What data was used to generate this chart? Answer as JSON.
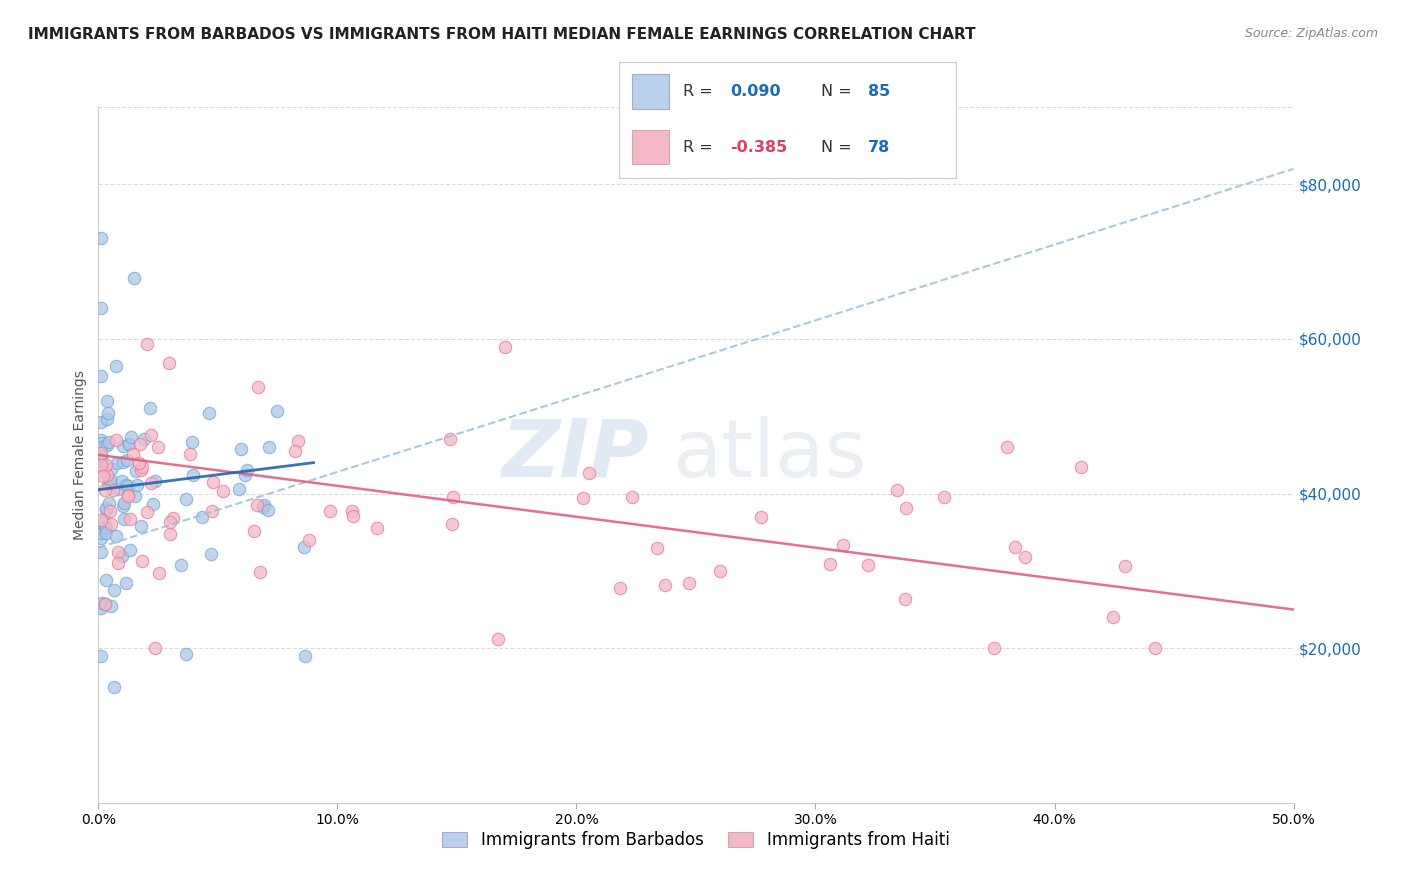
{
  "title": "IMMIGRANTS FROM BARBADOS VS IMMIGRANTS FROM HAITI MEDIAN FEMALE EARNINGS CORRELATION CHART",
  "source": "Source: ZipAtlas.com",
  "ylabel": "Median Female Earnings",
  "xlim": [
    0.0,
    0.5
  ],
  "ylim": [
    0,
    90000
  ],
  "yticks": [
    20000,
    40000,
    60000,
    80000
  ],
  "ytick_labels": [
    "$20,000",
    "$40,000",
    "$60,000",
    "$80,000"
  ],
  "xticks": [
    0.0,
    0.1,
    0.2,
    0.3,
    0.4,
    0.5
  ],
  "xtick_labels": [
    "0.0%",
    "10.0%",
    "20.0%",
    "30.0%",
    "40.0%",
    "50.0%"
  ],
  "barbados_fill": "#aec6e8",
  "barbados_edge": "#6baad4",
  "haiti_fill": "#f5b8c8",
  "haiti_edge": "#e87898",
  "trendline_blue_dashed": "#9abfd8",
  "trendline_blue_solid": "#2266aa",
  "trendline_pink_solid": "#e06080",
  "legend_box_barbados": "#b8d0ec",
  "legend_box_haiti": "#f5b8c8",
  "R_barbados": 0.09,
  "N_barbados": 85,
  "R_haiti": -0.385,
  "N_haiti": 78,
  "legend_label_barbados": "Immigrants from Barbados",
  "legend_label_haiti": "Immigrants from Haiti",
  "watermark_zip": "ZIP",
  "watermark_atlas": "atlas",
  "background_color": "#ffffff",
  "grid_color": "#d8d8d8",
  "title_fontsize": 11,
  "axis_label_fontsize": 10,
  "tick_fontsize": 10,
  "legend_fontsize": 12,
  "seed": 42
}
